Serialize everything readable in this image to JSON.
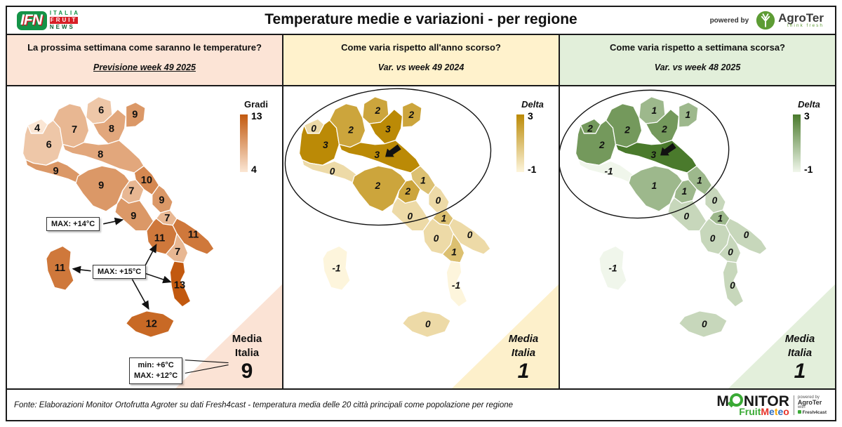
{
  "header": {
    "title": "Temperature medie e variazioni - per regione",
    "powered_by": "powered by",
    "ifn": {
      "abbr": "IFN",
      "stack": [
        "ITALIA",
        "FRUIT",
        "NEWS"
      ]
    },
    "agroter": {
      "name": "AgroTer",
      "tagline": "think fresh",
      "brand_green": "#5d9c34"
    }
  },
  "panels": [
    {
      "question": "La prossima settimana come saranno le temperature?",
      "subtitle": "Previsione week 49 2025",
      "legend_title": "Gradi",
      "legend_max": "13",
      "legend_min": "4",
      "media_word1": "Media",
      "media_word2": "Italia",
      "media_value": "9",
      "header_bg": "#fce4d6",
      "corner_bg": "#fbe3d5",
      "scale": {
        "min": 4,
        "max": 13,
        "light": "#fbe6d4",
        "dark": "#c2590f"
      },
      "values": {
        "valle-daosta": 4,
        "piemonte": 6,
        "lombardia": 7,
        "trentino": 6,
        "veneto": 8,
        "friuli": 9,
        "liguria": 9,
        "emilia": 8,
        "toscana": 9,
        "umbria": 7,
        "marche": 10,
        "lazio": 9,
        "abruzzo": 9,
        "molise": 7,
        "campania": 11,
        "puglia": 11,
        "basilicata": 7,
        "calabria": 13,
        "sicilia": 12,
        "sardegna": 11
      },
      "callouts": {
        "max14": "MAX: +14°C",
        "max15": "MAX: +15°C",
        "min6": "min: +6°C",
        "max12": "MAX: +12°C"
      }
    },
    {
      "question": "Come varia rispetto all'anno scorso?",
      "subtitle": "Var. vs week 49 2024",
      "legend_title": "Delta",
      "legend_max": "3",
      "legend_min": "-1",
      "media_word1": "Media",
      "media_word2": "Italia",
      "media_value": "1",
      "header_bg": "#fff2cc",
      "corner_bg": "#fdf0cb",
      "scale": {
        "min": -1,
        "max": 3,
        "light": "#fdf5dc",
        "dark": "#bb8a06"
      },
      "values": {
        "valle-daosta": 0,
        "piemonte": 3,
        "lombardia": 2,
        "trentino": 2,
        "veneto": 3,
        "friuli": 2,
        "liguria": 0,
        "emilia": 3,
        "toscana": 2,
        "umbria": 2,
        "marche": 1,
        "lazio": 0,
        "abruzzo": 0,
        "molise": 1,
        "campania": 0,
        "puglia": 0,
        "basilicata": 1,
        "calabria": -1,
        "sicilia": 0,
        "sardegna": -1
      }
    },
    {
      "question": "Come varia rispetto a settimana scorsa?",
      "subtitle": "Var. vs week 48 2025",
      "legend_title": "Delta",
      "legend_max": "3",
      "legend_min": "-1",
      "media_word1": "Media",
      "media_word2": "Italia",
      "media_value": "1",
      "header_bg": "#e2efda",
      "corner_bg": "#e3efdb",
      "scale": {
        "min": -1,
        "max": 3,
        "light": "#f0f6eb",
        "dark": "#4a7a2c"
      },
      "values": {
        "valle-daosta": 2,
        "piemonte": 2,
        "lombardia": 2,
        "trentino": 1,
        "veneto": 2,
        "friuli": 1,
        "liguria": -1,
        "emilia": 3,
        "toscana": 1,
        "umbria": 1,
        "marche": 1,
        "lazio": 0,
        "abruzzo": 0,
        "molise": 1,
        "campania": 0,
        "puglia": 0,
        "basilicata": 0,
        "calabria": 0,
        "sicilia": 0,
        "sardegna": -1
      }
    }
  ],
  "footer": {
    "source": "Fonte: Elaborazioni Monitor Ortofrutta Agroter su dati Fresh4cast - temperatura media delle 20 città principali come popolazione per regione",
    "monitor": {
      "m": "M",
      "rest": "NITOR",
      "fruit": "Fruit",
      "fruit_color": "#3aaa35",
      "meteo_letters": [
        {
          "ch": "M",
          "color": "#e63329"
        },
        {
          "ch": "e",
          "color": "#2f6fc0"
        },
        {
          "ch": "t",
          "color": "#f7a600"
        },
        {
          "ch": "e",
          "color": "#2f6fc0"
        },
        {
          "ch": "o",
          "color": "#e63329"
        }
      ],
      "powered_by": "powered by",
      "agroter": "AgroTer",
      "with": "with",
      "fresh": "Fresh4cast"
    }
  },
  "chart_data": [
    {
      "type": "heatmap",
      "title": "Previsione week 49 2025",
      "subtitle_question": "La prossima settimana come saranno le temperature?",
      "unit": "Gradi (°C)",
      "legend": {
        "title": "Gradi",
        "range": [
          4,
          13
        ]
      },
      "categories": [
        "Valle d'Aosta",
        "Piemonte",
        "Lombardia",
        "Trentino-Alto Adige",
        "Veneto",
        "Friuli-Venezia Giulia",
        "Liguria",
        "Emilia-Romagna",
        "Toscana",
        "Umbria",
        "Marche",
        "Lazio",
        "Abruzzo",
        "Molise",
        "Campania",
        "Puglia",
        "Basilicata",
        "Calabria",
        "Sicilia",
        "Sardegna"
      ],
      "values": [
        4,
        6,
        7,
        6,
        8,
        9,
        9,
        8,
        9,
        7,
        10,
        9,
        9,
        7,
        11,
        11,
        7,
        13,
        12,
        11
      ],
      "media_italia": 9,
      "annotations": [
        "MAX: +14°C",
        "MAX: +15°C",
        "min: +6°C",
        "MAX: +12°C"
      ]
    },
    {
      "type": "heatmap",
      "title": "Var. vs week 49 2024",
      "subtitle_question": "Come varia rispetto all'anno scorso?",
      "unit": "Delta (°C)",
      "legend": {
        "title": "Delta",
        "range": [
          -1,
          3
        ]
      },
      "categories": [
        "Valle d'Aosta",
        "Piemonte",
        "Lombardia",
        "Trentino-Alto Adige",
        "Veneto",
        "Friuli-Venezia Giulia",
        "Liguria",
        "Emilia-Romagna",
        "Toscana",
        "Umbria",
        "Marche",
        "Lazio",
        "Abruzzo",
        "Molise",
        "Campania",
        "Puglia",
        "Basilicata",
        "Calabria",
        "Sicilia",
        "Sardegna"
      ],
      "values": [
        0,
        3,
        2,
        2,
        3,
        2,
        0,
        3,
        2,
        2,
        1,
        0,
        0,
        1,
        0,
        0,
        1,
        -1,
        0,
        -1
      ],
      "media_italia": 1,
      "annotations": [
        "ellipse around northern Italy",
        "arrow pointing at Emilia-Romagna"
      ]
    },
    {
      "type": "heatmap",
      "title": "Var. vs week 48 2025",
      "subtitle_question": "Come varia rispetto a settimana scorsa?",
      "unit": "Delta (°C)",
      "legend": {
        "title": "Delta",
        "range": [
          -1,
          3
        ]
      },
      "categories": [
        "Valle d'Aosta",
        "Piemonte",
        "Lombardia",
        "Trentino-Alto Adige",
        "Veneto",
        "Friuli-Venezia Giulia",
        "Liguria",
        "Emilia-Romagna",
        "Toscana",
        "Umbria",
        "Marche",
        "Lazio",
        "Abruzzo",
        "Molise",
        "Campania",
        "Puglia",
        "Basilicata",
        "Calabria",
        "Sicilia",
        "Sardegna"
      ],
      "values": [
        2,
        2,
        2,
        1,
        2,
        1,
        -1,
        3,
        1,
        1,
        1,
        0,
        0,
        1,
        0,
        0,
        0,
        0,
        0,
        -1
      ],
      "media_italia": 1,
      "annotations": [
        "ellipse around northern Italy",
        "arrow pointing at Emilia-Romagna"
      ]
    }
  ]
}
